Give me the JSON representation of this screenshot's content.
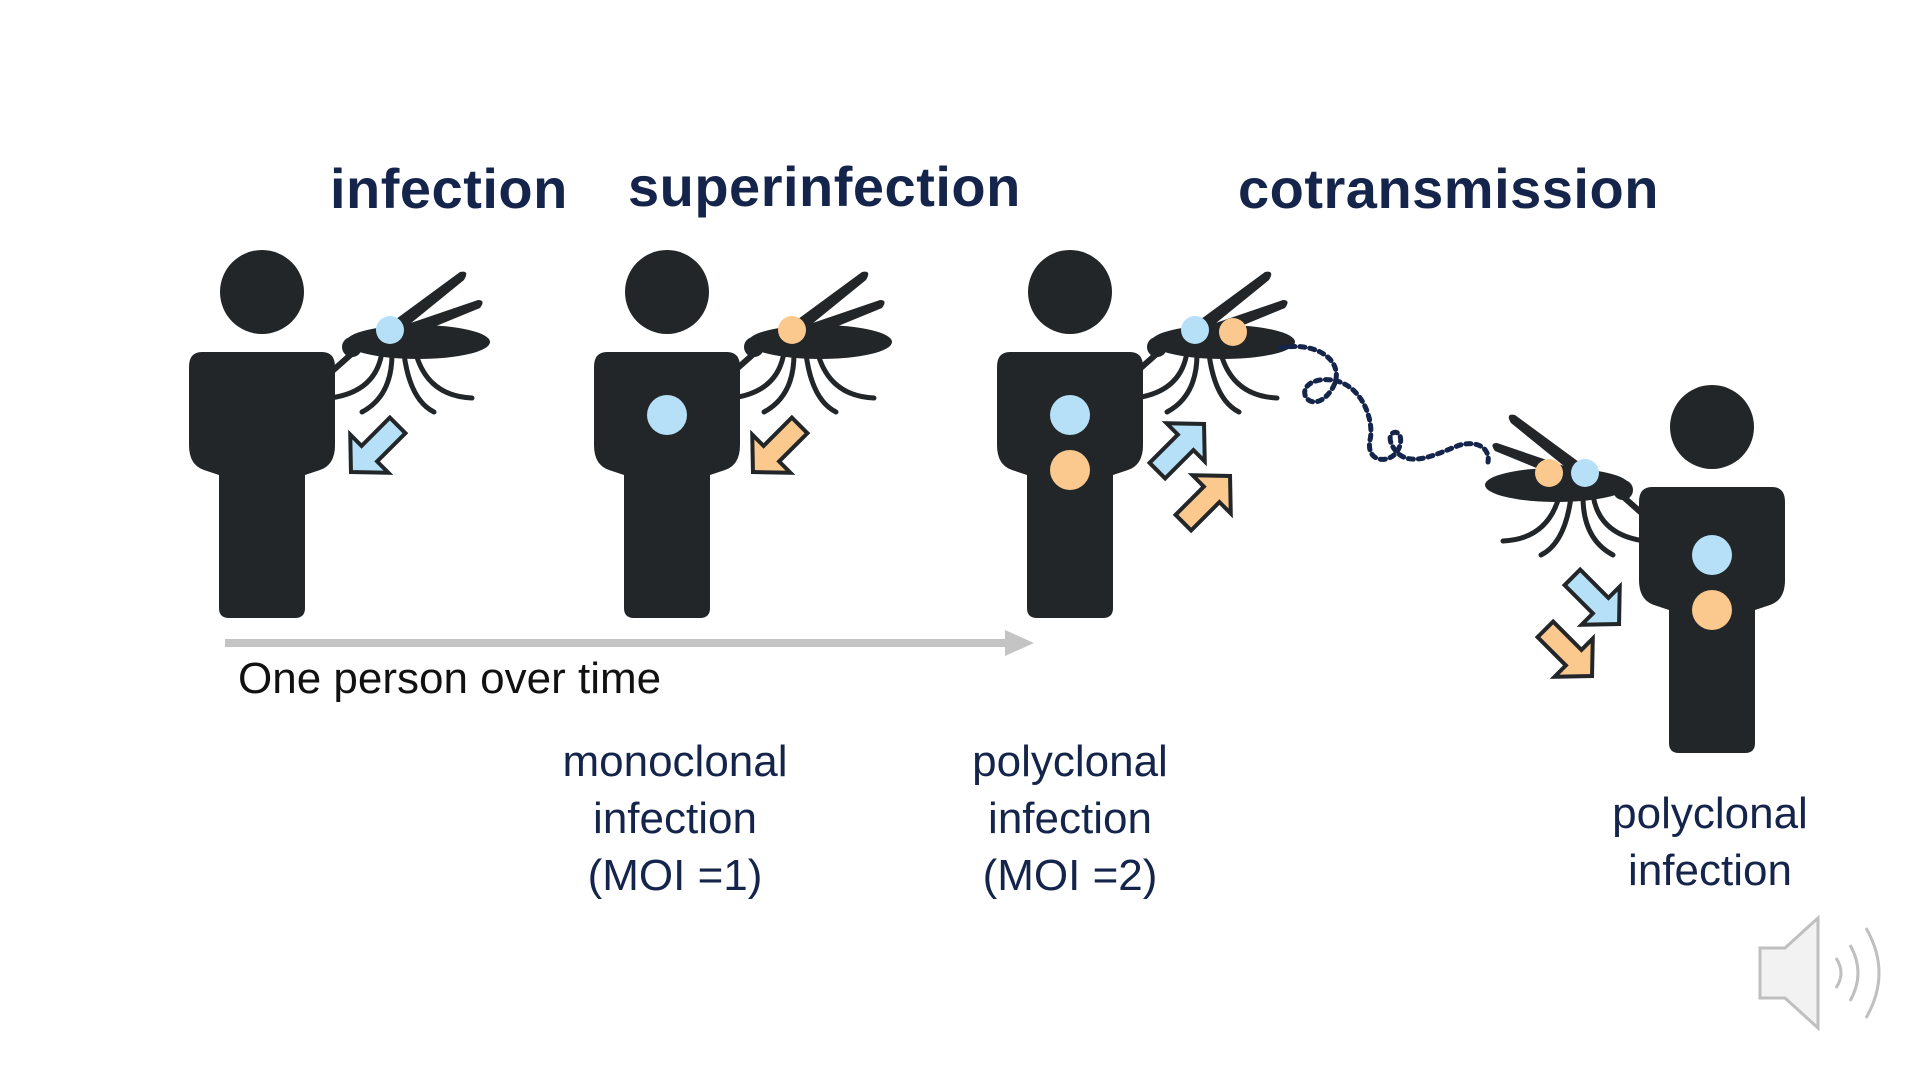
{
  "headings": {
    "infection": "infection",
    "superinfection": "superinfection",
    "cotransmission": "cotransmission"
  },
  "timeline": {
    "label": "One person over time"
  },
  "captions": {
    "monoclonal": {
      "line1": "monoclonal",
      "line2": "infection",
      "line3": "(MOI =1)"
    },
    "polyclonal_moi": {
      "line1": "polyclonal",
      "line2": "infection",
      "line3": "(MOI =2)"
    },
    "polyclonal_cotransmission": {
      "line1": "polyclonal",
      "line2": "infection"
    }
  },
  "icons": {
    "person": "person-icon",
    "mosquito": "mosquito-icon",
    "arrow": "transmission-arrow-icon",
    "speaker": "speaker-icon"
  },
  "colors": {
    "figure": "#222628",
    "heading_text": "#14244a",
    "strain_blue": "#b6e0f7",
    "strain_orange": "#fbc98e",
    "timeline_arrow": "#c4c4c4",
    "speaker": "#bfbfbf"
  }
}
